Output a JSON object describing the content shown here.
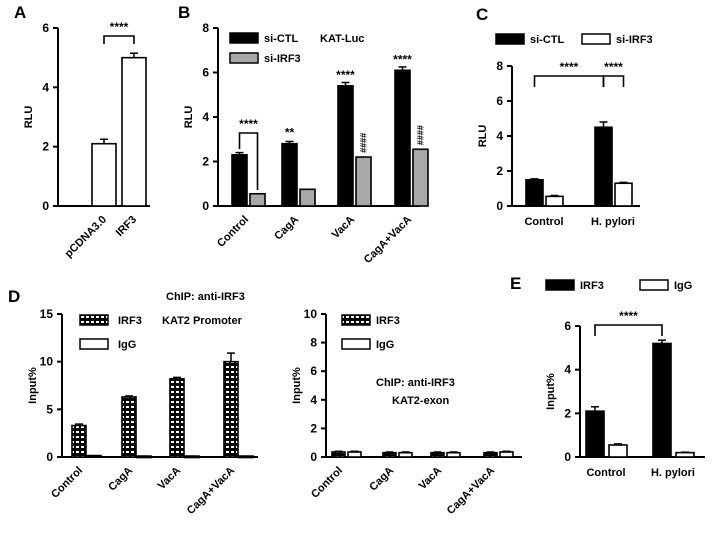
{
  "figure": {
    "panels": [
      {
        "id": "A",
        "letter": "A"
      },
      {
        "id": "B",
        "letter": "B"
      },
      {
        "id": "C",
        "letter": "C"
      },
      {
        "id": "D",
        "letter": "D"
      },
      {
        "id": "E",
        "letter": "E"
      }
    ]
  },
  "chart_data": [
    {
      "panel": "A",
      "type": "bar",
      "ylabel": "RLU",
      "ylim": [
        0,
        6
      ],
      "yticks": [
        0,
        2,
        4,
        6
      ],
      "categories": [
        "pCDNA3.0",
        "IRF3"
      ],
      "values": [
        2.1,
        5.0
      ],
      "errors": [
        0.15,
        0.15
      ],
      "significance": [
        {
          "between": [
            0,
            1
          ],
          "label": "****"
        }
      ]
    },
    {
      "panel": "B",
      "type": "bar",
      "ylabel": "RLU",
      "ylim": [
        0,
        8
      ],
      "yticks": [
        0,
        2,
        4,
        6,
        8
      ],
      "annotation": "KAT-Luc",
      "categories": [
        "Control",
        "CagA",
        "VacA",
        "CagA+VacA"
      ],
      "series": [
        {
          "name": "si-CTL",
          "values": [
            2.3,
            2.8,
            5.4,
            6.1
          ],
          "errors": [
            0.1,
            0.1,
            0.15,
            0.15
          ],
          "labels": [
            "",
            "**",
            "****",
            "****"
          ]
        },
        {
          "name": "si-IRF3",
          "values": [
            0.55,
            0.75,
            2.2,
            2.55
          ],
          "errors": [
            0,
            0,
            0,
            0
          ],
          "labels": [
            "",
            "",
            "####",
            "####"
          ]
        }
      ],
      "significance": [
        {
          "group": 0,
          "label": "****"
        }
      ]
    },
    {
      "panel": "C",
      "type": "bar",
      "ylabel": "RLU",
      "ylim": [
        0,
        8
      ],
      "yticks": [
        0,
        2,
        4,
        6,
        8
      ],
      "categories": [
        "Control",
        "H. pylori"
      ],
      "series": [
        {
          "name": "si-CTL",
          "values": [
            1.5,
            4.5
          ],
          "errors": [
            0.05,
            0.3
          ]
        },
        {
          "name": "si-IRF3",
          "values": [
            0.55,
            1.3
          ],
          "errors": [
            0.05,
            0.05
          ]
        }
      ],
      "significance": [
        {
          "between": [
            "Control/si-CTL",
            "H. pylori/si-CTL"
          ],
          "label": "****"
        },
        {
          "between": [
            "H. pylori/si-CTL",
            "H. pylori/si-IRF3"
          ],
          "label": "****"
        }
      ]
    },
    {
      "panel": "D",
      "type": "bar",
      "ylabel": "Input%",
      "ylim": [
        0,
        15
      ],
      "yticks": [
        0,
        5,
        10,
        15
      ],
      "title": "ChIP: anti-IRF3",
      "annotation": "KAT2 Promoter",
      "categories": [
        "Control",
        "CagA",
        "VacA",
        "CagA+VacA"
      ],
      "series": [
        {
          "name": "IRF3",
          "values": [
            3.3,
            6.3,
            8.2,
            10.0
          ],
          "errors": [
            0.15,
            0.1,
            0.15,
            0.9
          ]
        },
        {
          "name": "IgG",
          "values": [
            0.15,
            0.1,
            0.1,
            0.1
          ],
          "errors": [
            0,
            0,
            0,
            0
          ]
        }
      ]
    },
    {
      "panel": "D2",
      "type": "bar",
      "ylabel": "Input%",
      "ylim": [
        0,
        10
      ],
      "yticks": [
        0,
        2,
        4,
        6,
        8,
        10
      ],
      "title": "ChIP: anti-IRF3",
      "annotation": "KAT2-exon",
      "categories": [
        "Control",
        "CagA",
        "VacA",
        "CagA+VacA"
      ],
      "series": [
        {
          "name": "IRF3",
          "values": [
            0.35,
            0.3,
            0.3,
            0.3
          ],
          "errors": [
            0.05,
            0.05,
            0.05,
            0.05
          ]
        },
        {
          "name": "IgG",
          "values": [
            0.35,
            0.3,
            0.3,
            0.35
          ],
          "errors": [
            0.05,
            0.05,
            0.05,
            0.05
          ]
        }
      ]
    },
    {
      "panel": "E",
      "type": "bar",
      "ylabel": "Input%",
      "ylim": [
        0,
        6
      ],
      "yticks": [
        0,
        2,
        4,
        6
      ],
      "categories": [
        "Control",
        "H. pylori"
      ],
      "series": [
        {
          "name": "IRF3",
          "values": [
            2.1,
            5.2
          ],
          "errors": [
            0.2,
            0.15
          ]
        },
        {
          "name": "IgG",
          "values": [
            0.55,
            0.2
          ],
          "errors": [
            0.05,
            0.02
          ]
        }
      ],
      "significance": [
        {
          "between": [
            "Control/IRF3",
            "H. pylori/IRF3"
          ],
          "label": "****"
        }
      ]
    }
  ]
}
